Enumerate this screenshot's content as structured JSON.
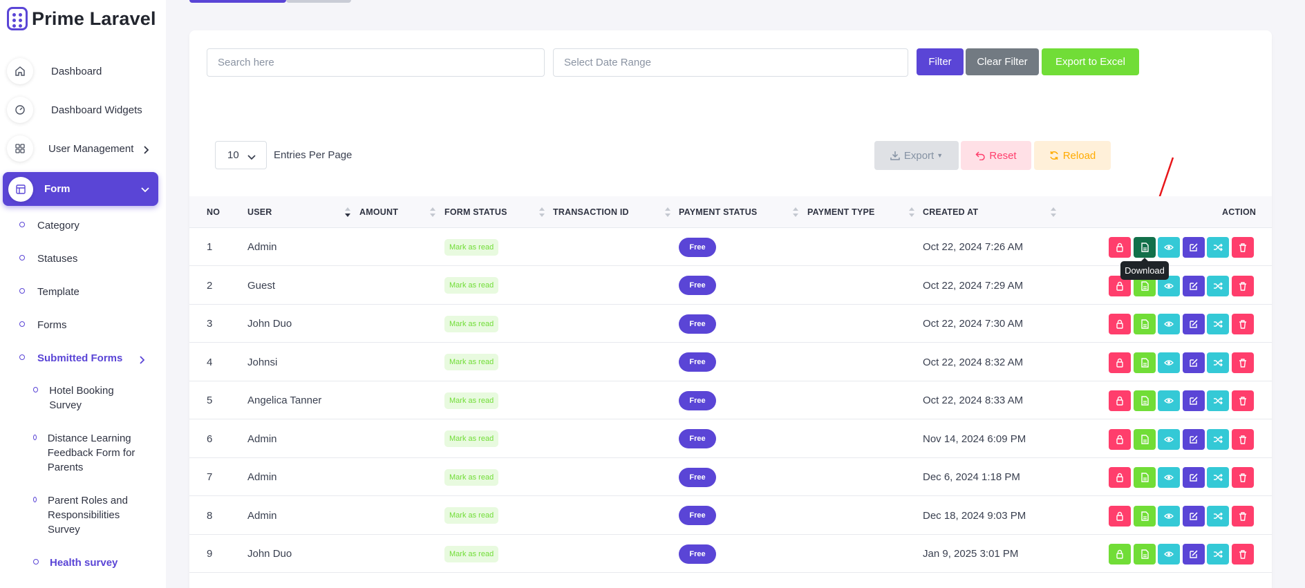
{
  "app": {
    "brand": "Prime Laravel"
  },
  "sidebar": {
    "items": [
      {
        "label": "Dashboard",
        "icon": "home-icon"
      },
      {
        "label": "Dashboard Widgets",
        "icon": "gauge-icon"
      },
      {
        "label": "User Management",
        "icon": "grid-icon"
      },
      {
        "label": "Form",
        "icon": "table-icon"
      }
    ],
    "form_sub": [
      "Category",
      "Statuses",
      "Template",
      "Forms",
      "Submitted Forms"
    ],
    "submitted_sub": [
      "Hotel Booking Survey",
      "Distance Learning Feedback Form for Parents",
      "Parent Roles and Responsibilities Survey",
      "Health survey"
    ]
  },
  "filters": {
    "search_placeholder": "Search here",
    "date_placeholder": "Select Date Range",
    "filter_label": "Filter",
    "clear_label": "Clear Filter",
    "export_excel_label": "Export to Excel"
  },
  "toolbar": {
    "entries_value": "10",
    "entries_label": "Entries Per Page",
    "export_label": "Export",
    "reset_label": "Reset",
    "reload_label": "Reload"
  },
  "table": {
    "headers": [
      "NO",
      "USER",
      "AMOUNT",
      "FORM STATUS",
      "TRANSACTION ID",
      "PAYMENT STATUS",
      "PAYMENT TYPE",
      "CREATED AT",
      "ACTION"
    ],
    "rows": [
      {
        "no": "1",
        "user": "Admin",
        "form_status": "Mark as read",
        "payment_status": "Free",
        "created_at": "Oct 22, 2024 7:26 AM",
        "lock_color": "#ff3e6c"
      },
      {
        "no": "2",
        "user": "Guest",
        "form_status": "Mark as read",
        "payment_status": "Free",
        "created_at": "Oct 22, 2024 7:29 AM",
        "lock_color": "#ff3e6c"
      },
      {
        "no": "3",
        "user": "John Duo",
        "form_status": "Mark as read",
        "payment_status": "Free",
        "created_at": "Oct 22, 2024 7:30 AM",
        "lock_color": "#ff3e6c"
      },
      {
        "no": "4",
        "user": "Johnsi",
        "form_status": "Mark as read",
        "payment_status": "Free",
        "created_at": "Oct 22, 2024 8:32 AM",
        "lock_color": "#ff3e6c"
      },
      {
        "no": "5",
        "user": "Angelica Tanner",
        "form_status": "Mark as read",
        "payment_status": "Free",
        "created_at": "Oct 22, 2024 8:33 AM",
        "lock_color": "#ff3e6c"
      },
      {
        "no": "6",
        "user": "Admin",
        "form_status": "Mark as read",
        "payment_status": "Free",
        "created_at": "Nov 14, 2024 6:09 PM",
        "lock_color": "#ff3e6c"
      },
      {
        "no": "7",
        "user": "Admin",
        "form_status": "Mark as read",
        "payment_status": "Free",
        "created_at": "Dec 6, 2024 1:18 PM",
        "lock_color": "#ff3e6c"
      },
      {
        "no": "8",
        "user": "Admin",
        "form_status": "Mark as read",
        "payment_status": "Free",
        "created_at": "Dec 18, 2024 9:03 PM",
        "lock_color": "#ff3e6c"
      },
      {
        "no": "9",
        "user": "John Duo",
        "form_status": "Mark as read",
        "payment_status": "Free",
        "created_at": "Jan 9, 2025 3:01 PM",
        "lock_color": "#71dd37"
      }
    ]
  },
  "tooltip": {
    "text": "Download"
  },
  "colors": {
    "primary": "#5a45d6",
    "danger": "#ff3e6c",
    "success": "#71dd37",
    "info": "#34c9d6",
    "secondary": "#8592a3",
    "download_active": "#12704a"
  }
}
